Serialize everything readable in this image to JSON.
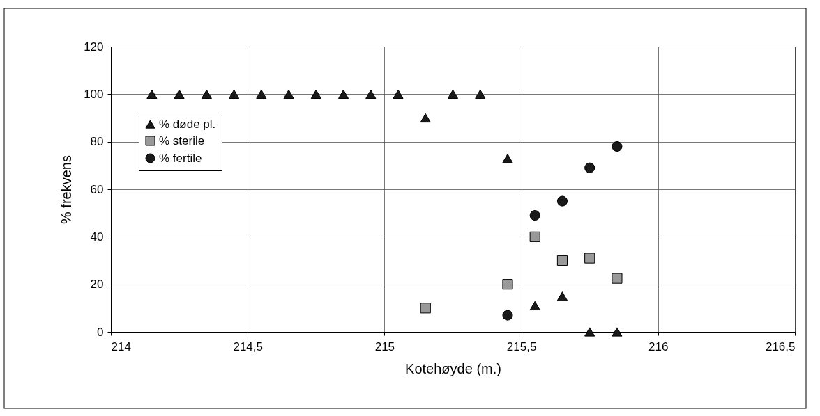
{
  "chart_data": {
    "type": "scatter",
    "xlabel": "Kotehøyde (m.)",
    "ylabel": "% frekvens",
    "xlim": [
      214,
      216.5
    ],
    "xticks": [
      214,
      {
        "value": 214.5,
        "label": "214,5"
      },
      215,
      {
        "value": 215.5,
        "label": "215,5"
      },
      216,
      {
        "value": 216.5,
        "label": "216,5"
      }
    ],
    "ylim": [
      0,
      120
    ],
    "yticks": [
      0,
      20,
      40,
      60,
      80,
      100,
      120
    ],
    "grid": true,
    "legend": "left",
    "series": [
      {
        "name": "% døde pl.",
        "color": "#1a1a1a",
        "marker": "triangle",
        "x": [
          214.15,
          214.25,
          214.35,
          214.45,
          214.55,
          214.65,
          214.75,
          214.85,
          214.95,
          215.05,
          215.15,
          215.25,
          215.35,
          215.45,
          215.55,
          215.65,
          215.75,
          215.85
        ],
        "values": [
          100,
          100,
          100,
          100,
          100,
          100,
          100,
          100,
          100,
          100,
          90,
          100,
          100,
          73,
          11,
          15,
          0,
          0
        ]
      },
      {
        "name": "% sterile",
        "color": "#999999",
        "marker": "square",
        "x": [
          215.15,
          215.45,
          215.55,
          215.65,
          215.75,
          215.85
        ],
        "values": [
          10,
          20,
          40,
          30,
          31,
          22.5
        ]
      },
      {
        "name": "% fertile",
        "color": "#1a1a1a",
        "marker": "circle",
        "x": [
          215.45,
          215.55,
          215.65,
          215.75,
          215.85
        ],
        "values": [
          7,
          49,
          55,
          69,
          78
        ]
      }
    ]
  }
}
